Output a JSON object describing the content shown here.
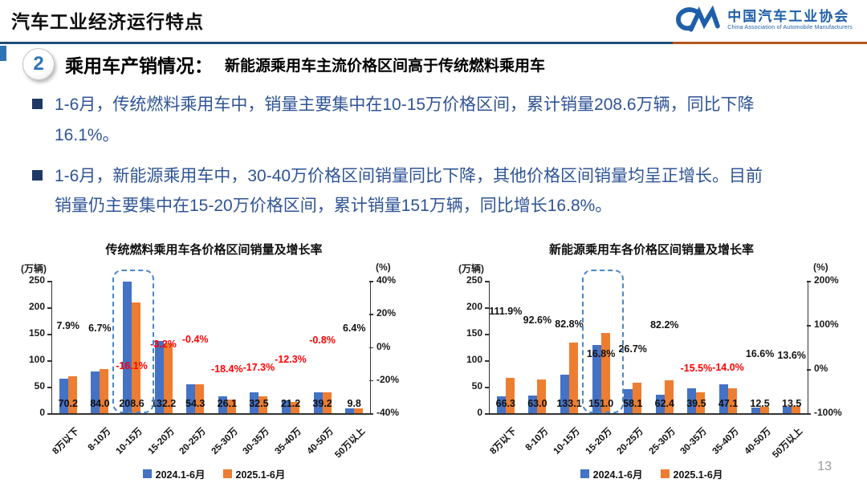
{
  "header": {
    "title": "汽车工业经济运行特点",
    "logo": {
      "org_cn": "中国汽车工业协会",
      "org_en": "China Association of Automobile Manufacturers"
    }
  },
  "section": {
    "number": "2",
    "title": "乘用车产销情况：",
    "subtitle": "新能源乘用车主流价格区间高于传统燃料乘用车"
  },
  "bullets": [
    {
      "text": "1-6月，传统燃料乘用车中，销量主要集中在10-15万价格区间，累计销量208.6万辆，同比下降16.1%。"
    },
    {
      "text": "1-6月，新能源乘用车中，30-40万价格区间销量同比下降，其他价格区间销量均呈正增长。目前销量仍主要集中在15-20万价格区间，累计销量151万辆，同比增长16.8%。"
    }
  ],
  "page_number": "13",
  "colors": {
    "bar_2024": "#4472C4",
    "bar_2025": "#ED7D31",
    "negative_label": "#FF0000",
    "positive_label": "#111111",
    "divider_blue": "#1F4E79",
    "divider_orange": "#B4561E",
    "accent_blue": "#2E74B5",
    "bullet_text": "#2F5496",
    "logo_blue": "#1F5FA9",
    "highlight_dash": "#4A86C8"
  },
  "chart_data": [
    {
      "type": "bar",
      "title": "传统燃料乘用车各价格区间销量及增长率",
      "categories": [
        "8万以下",
        "8-10万",
        "10-15万",
        "15-20万",
        "20-25万",
        "25-30万",
        "30-35万",
        "35-40万",
        "40-50万",
        "50万以上"
      ],
      "series": [
        {
          "name": "2024.1-6月",
          "color": "#4472C4",
          "estimated": true,
          "values": [
            65.1,
            78.7,
            248.6,
            136.6,
            54.5,
            32.0,
            39.3,
            24.2,
            39.5,
            9.2
          ]
        },
        {
          "name": "2025.1-6月",
          "color": "#ED7D31",
          "estimated": false,
          "values": [
            70.2,
            84.0,
            208.6,
            132.2,
            54.3,
            26.1,
            32.5,
            21.2,
            39.2,
            9.8
          ]
        }
      ],
      "value_labels": [
        "70.2",
        "84.0",
        "208.6",
        "132.2",
        "54.3",
        "26.1",
        "32.5",
        "21.2",
        "39.2",
        "9.8"
      ],
      "growth_labels": [
        "7.9%",
        "6.7%",
        "-16.1%",
        "-3.2%",
        "-0.4%",
        "-18.4%",
        "-17.3%",
        "-12.3%",
        "-0.8%",
        "6.4%"
      ],
      "growth_values": [
        7.9,
        6.7,
        -16.1,
        -3.2,
        -0.4,
        -18.4,
        -17.3,
        -12.3,
        -0.8,
        6.4
      ],
      "left_axis": {
        "unit": "(万辆)",
        "ticks": [
          250,
          200,
          150,
          100,
          50,
          0
        ],
        "max": 250,
        "min": 0
      },
      "right_axis": {
        "unit": "(%)",
        "max": 40,
        "min": -40,
        "ticks": [
          {
            "label": "40%",
            "value": 40
          },
          {
            "label": "20%",
            "value": 20
          },
          {
            "label": "0%",
            "value": 0
          },
          {
            "label": "-20%",
            "value": -20
          },
          {
            "label": "-40%",
            "value": -40
          }
        ]
      },
      "highlight_index": 2,
      "legend": [
        "2024.1-6月",
        "2025.1-6月"
      ]
    },
    {
      "type": "bar",
      "title": "新能源乘用车各价格区间销量及增长率",
      "categories": [
        "8万以下",
        "8-10万",
        "10-15万",
        "15-20万",
        "20-25万",
        "25-30万",
        "30-35万",
        "35-40万",
        "40-50万",
        "50万以上"
      ],
      "series": [
        {
          "name": "2024.1-6月",
          "color": "#4472C4",
          "estimated": true,
          "values": [
            31.3,
            32.7,
            72.8,
            129.3,
            45.9,
            34.2,
            46.7,
            54.8,
            10.7,
            11.9
          ]
        },
        {
          "name": "2025.1-6月",
          "color": "#ED7D31",
          "estimated": false,
          "values": [
            66.3,
            63.0,
            133.1,
            151.0,
            58.1,
            62.4,
            39.5,
            47.1,
            12.5,
            13.5
          ]
        }
      ],
      "value_labels": [
        "66.3",
        "63.0",
        "133.1",
        "151.0",
        "58.1",
        "62.4",
        "39.5",
        "47.1",
        "12.5",
        "13.5"
      ],
      "growth_labels": [
        "111.9%",
        "92.6%",
        "82.8%",
        "16.8%",
        "26.7%",
        "82.2%",
        "-15.5%",
        "-14.0%",
        "16.6%",
        "13.6%"
      ],
      "growth_values": [
        111.9,
        92.6,
        82.8,
        16.8,
        26.7,
        82.2,
        -15.5,
        -14.0,
        16.6,
        13.6
      ],
      "left_axis": {
        "unit": "(万辆)",
        "ticks": [
          250,
          200,
          150,
          100,
          50,
          0
        ],
        "max": 250,
        "min": 0
      },
      "right_axis": {
        "unit": "(%)",
        "max": 200,
        "min": -100,
        "ticks": [
          {
            "label": "200%",
            "value": 200
          },
          {
            "label": "100%",
            "value": 100
          },
          {
            "label": "0%",
            "value": 0
          },
          {
            "label": "-100%",
            "value": -100
          }
        ]
      },
      "highlight_index": 3,
      "legend": [
        "2024.1-6月",
        "2025.1-6月"
      ]
    }
  ]
}
